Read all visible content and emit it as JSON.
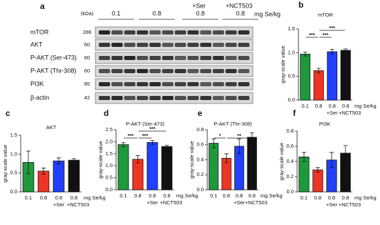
{
  "blot": {
    "panel": "a",
    "kda_header": "(kDa)",
    "unit": "mg Se/kg",
    "groups": [
      {
        "top": null,
        "label": "0.1"
      },
      {
        "top": null,
        "label": "0.8"
      },
      {
        "top": "+Ser",
        "label": "0.8"
      },
      {
        "top": "+NCT503",
        "label": "0.8"
      }
    ],
    "rows": [
      {
        "name": "mTOR",
        "kda": 286
      },
      {
        "name": "AKT",
        "kda": 60
      },
      {
        "name": "P-AKT (Ser-473)",
        "kda": 60
      },
      {
        "name": "P-AKT (Thr-308)",
        "kda": 60
      },
      {
        "name": "PI3K",
        "kda": 85
      },
      {
        "name": "β-actin",
        "kda": 42
      }
    ]
  },
  "chart_data": [
    {
      "type": "bar",
      "panel": "b",
      "title": "mTOR",
      "ylabel": "gray-scale value",
      "xlabel": "mg Se/kg",
      "categories": [
        "0.1",
        "0.8",
        "0.8",
        "0.8"
      ],
      "sublabels": [
        null,
        null,
        "+Ser",
        "+NCT503"
      ],
      "values": [
        0.97,
        0.62,
        1.02,
        1.05
      ],
      "errors": [
        0.04,
        0.05,
        0.05,
        0.03
      ],
      "colors": [
        "#1e9a3a",
        "#ee3524",
        "#2140ff",
        "#111111"
      ],
      "ylim": [
        0,
        1.5
      ],
      "yticks": [
        {
          "value": 0,
          "label": "0.0"
        },
        {
          "value": 0.5,
          "label": "0.5"
        },
        {
          "value": 1,
          "label": "1.0"
        },
        {
          "value": 1.5,
          "label": "1.5"
        }
      ],
      "significance": [
        "***",
        "***",
        "***"
      ]
    },
    {
      "type": "bar",
      "panel": "c",
      "title": "AKT",
      "ylabel": "gray-scale value",
      "xlabel": "mg Se/kg",
      "categories": [
        "0.1",
        "0.8",
        "0.8",
        "0.8"
      ],
      "sublabels": [
        null,
        null,
        "+Ser",
        "+NCT503"
      ],
      "values": [
        0.78,
        0.55,
        0.82,
        0.84
      ],
      "errors": [
        0.3,
        0.08,
        0.08,
        0.04
      ],
      "colors": [
        "#1e9a3a",
        "#ee3524",
        "#2140ff",
        "#111111"
      ],
      "ylim": [
        0,
        1.5
      ],
      "yticks": [
        {
          "value": 0,
          "label": "0.0"
        },
        {
          "value": 0.5,
          "label": "0.5"
        },
        {
          "value": 1,
          "label": "1.0"
        },
        {
          "value": 1.5,
          "label": "1.5"
        }
      ],
      "significance": []
    },
    {
      "type": "bar",
      "panel": "d",
      "title": "P-AKT (Ser-473)",
      "ylabel": "gray-scale value",
      "xlabel": "mg Se/kg",
      "categories": [
        "0.1",
        "0.8",
        "0.8",
        "0.8"
      ],
      "sublabels": [
        null,
        null,
        "+Ser",
        "+NCT503"
      ],
      "values": [
        1.88,
        1.27,
        1.97,
        1.8
      ],
      "errors": [
        0.08,
        0.15,
        0.08,
        0.05
      ],
      "colors": [
        "#1e9a3a",
        "#ee3524",
        "#2140ff",
        "#111111"
      ],
      "ylim": [
        0,
        2.5
      ],
      "yticks": [
        {
          "value": 0,
          "label": "0.0"
        },
        {
          "value": 0.5,
          "label": "0.5"
        },
        {
          "value": 1,
          "label": "1.0"
        },
        {
          "value": 1.5,
          "label": "1.5"
        },
        {
          "value": 2,
          "label": "2.0"
        },
        {
          "value": 2.5,
          "label": "2.5"
        }
      ],
      "significance": [
        "***",
        "***",
        "***"
      ]
    },
    {
      "type": "bar",
      "panel": "e",
      "title": "P-AKT (Thr-308)",
      "ylabel": "gray-scale value",
      "xlabel": "mg Se/kg",
      "categories": [
        "0.1",
        "0.8",
        "0.8",
        "0.8"
      ],
      "sublabels": [
        null,
        null,
        "+Ser",
        "+NCT503"
      ],
      "values": [
        0.62,
        0.42,
        0.58,
        0.7
      ],
      "errors": [
        0.06,
        0.06,
        0.1,
        0.06
      ],
      "colors": [
        "#1e9a3a",
        "#ee3524",
        "#2140ff",
        "#111111"
      ],
      "ylim": [
        0,
        0.8
      ],
      "yticks": [
        {
          "value": 0,
          "label": "0.0"
        },
        {
          "value": 0.2,
          "label": "0.2"
        },
        {
          "value": 0.4,
          "label": "0.4"
        },
        {
          "value": 0.6,
          "label": "0.6"
        },
        {
          "value": 0.8,
          "label": "0.8"
        }
      ],
      "significance": [
        "*",
        "**"
      ]
    },
    {
      "type": "bar",
      "panel": "f",
      "title": "PI3K",
      "ylabel": "gray-scale value",
      "xlabel": "mg Se/kg",
      "categories": [
        "0.1",
        "0.8",
        "0.8",
        "0.8"
      ],
      "sublabels": [
        null,
        null,
        "+Ser",
        "+NCT503"
      ],
      "values": [
        0.46,
        0.29,
        0.42,
        0.51
      ],
      "errors": [
        0.06,
        0.03,
        0.1,
        0.1
      ],
      "colors": [
        "#1e9a3a",
        "#ee3524",
        "#2140ff",
        "#111111"
      ],
      "ylim": [
        0,
        0.8
      ],
      "yticks": [
        {
          "value": 0,
          "label": "0.0"
        },
        {
          "value": 0.2,
          "label": "0.2"
        },
        {
          "value": 0.4,
          "label": "0.4"
        },
        {
          "value": 0.6,
          "label": "0.6"
        },
        {
          "value": 0.8,
          "label": "0.8"
        }
      ],
      "significance": []
    }
  ]
}
